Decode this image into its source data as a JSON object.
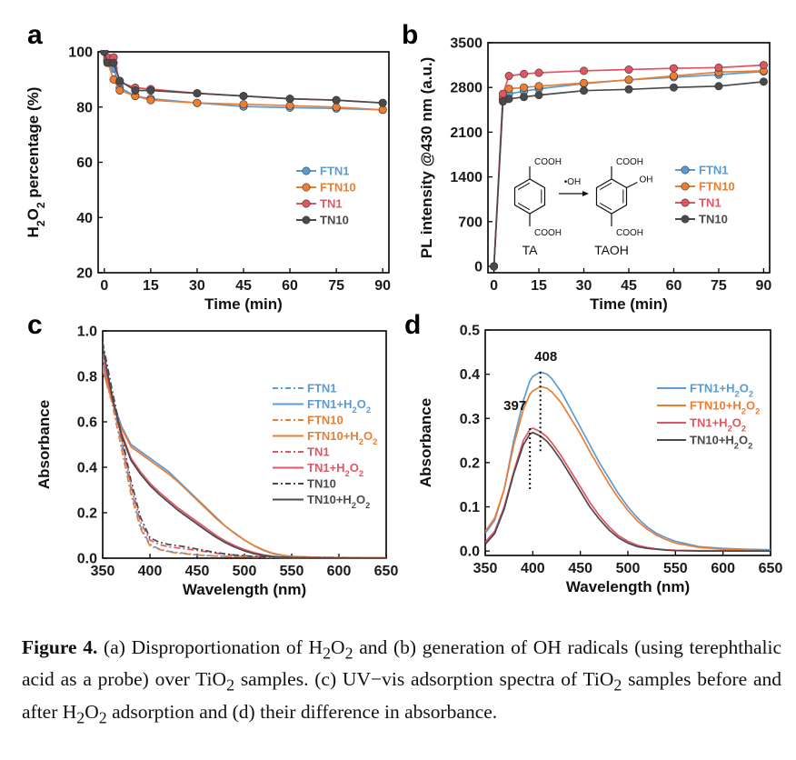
{
  "colors": {
    "FTN1": "#5b9bd5",
    "FTN10": "#ed7d31",
    "TN1": "#e05563",
    "TN10": "#4a4a4a",
    "axis": "#000000"
  },
  "caption": {
    "label": "Figure 4.",
    "html": "(a) Disproportionation of H<sub>2</sub>O<sub>2</sub> and (b) generation of OH radicals (using terephthalic acid as a probe) over TiO<sub>2</sub> samples. (c) UV&minus;vis adsorption spectra of TiO<sub>2</sub> samples before and after H<sub>2</sub>O<sub>2</sub> adsorption and (d) their difference in absorbance."
  },
  "chart_data": [
    {
      "panel": "a",
      "type": "line",
      "title": "",
      "xlabel": "Time (min)",
      "ylabel": "H2O2 percentage (%)",
      "xlim": [
        -2,
        92
      ],
      "ylim": [
        20,
        100
      ],
      "xticks": [
        0,
        15,
        30,
        45,
        60,
        75,
        90
      ],
      "yticks": [
        20,
        40,
        60,
        80,
        100
      ],
      "legend_position": "center-right",
      "x": [
        0,
        1,
        3,
        5,
        10,
        15,
        30,
        45,
        60,
        75,
        90
      ],
      "series": [
        {
          "name": "FTN1",
          "color_key": "FTN1",
          "values": [
            100,
            97,
            94,
            87,
            84,
            83,
            81.5,
            80.2,
            79.8,
            79.5,
            79
          ]
        },
        {
          "name": "FTN10",
          "color_key": "FTN10",
          "values": [
            100,
            96.5,
            90,
            86,
            84,
            82.5,
            81.5,
            81,
            80.5,
            80,
            79
          ]
        },
        {
          "name": "TN1",
          "color_key": "TN1",
          "values": [
            100,
            98,
            98,
            89,
            87,
            86.5,
            85,
            84,
            83,
            82.5,
            81.5
          ]
        },
        {
          "name": "TN10",
          "color_key": "TN10",
          "values": [
            100,
            96,
            96,
            89.5,
            86,
            86,
            85,
            84,
            83,
            82.5,
            81.5
          ]
        }
      ]
    },
    {
      "panel": "b",
      "type": "line",
      "title": "",
      "xlabel": "Time (min)",
      "ylabel": "PL intensity @430 nm (a.u.)",
      "xlim": [
        -2,
        92
      ],
      "ylim": [
        -100,
        3500
      ],
      "xticks": [
        0,
        15,
        30,
        45,
        60,
        75,
        90
      ],
      "yticks": [
        0,
        700,
        1400,
        2100,
        2800,
        3500
      ],
      "legend_position": "center-right",
      "x": [
        0,
        3,
        5,
        10,
        15,
        30,
        45,
        60,
        75,
        90
      ],
      "series": [
        {
          "name": "FTN1",
          "color_key": "FTN1",
          "values": [
            0,
            2620,
            2700,
            2740,
            2780,
            2860,
            2920,
            2960,
            3000,
            3050
          ]
        },
        {
          "name": "FTN10",
          "color_key": "FTN10",
          "values": [
            0,
            2650,
            2780,
            2800,
            2820,
            2870,
            2920,
            2980,
            3040,
            3060
          ]
        },
        {
          "name": "TN1",
          "color_key": "TN1",
          "values": [
            0,
            2700,
            2980,
            3010,
            3030,
            3060,
            3080,
            3100,
            3110,
            3150
          ]
        },
        {
          "name": "TN10",
          "color_key": "TN10",
          "values": [
            0,
            2580,
            2620,
            2650,
            2680,
            2750,
            2770,
            2800,
            2820,
            2890
          ]
        }
      ],
      "inset": {
        "reactant_group_top": "COOH",
        "reactant_group_bottom": "COOH",
        "reactant_label": "TA",
        "reagent": "•OH",
        "product_group_top": "COOH",
        "product_group_side": "OH",
        "product_group_bottom": "COOH",
        "product_label": "TAOH"
      }
    },
    {
      "panel": "c",
      "type": "line",
      "title": "",
      "xlabel": "Wavelength (nm)",
      "ylabel": "Absorbance",
      "xlim": [
        350,
        650
      ],
      "ylim": [
        0,
        1.0
      ],
      "xticks": [
        350,
        400,
        450,
        500,
        550,
        600,
        650
      ],
      "yticks": [
        0.0,
        0.2,
        0.4,
        0.6,
        0.8,
        1.0
      ],
      "legend_position": "right",
      "x": [
        350,
        360,
        370,
        380,
        390,
        400,
        410,
        420,
        430,
        440,
        450,
        460,
        470,
        480,
        490,
        500,
        510,
        520,
        530,
        540,
        550,
        575,
        600,
        625,
        650
      ],
      "series": [
        {
          "name": "FTN1",
          "color_key": "FTN1",
          "dash": "dashdot",
          "values": [
            0.85,
            0.7,
            0.5,
            0.3,
            0.14,
            0.06,
            0.04,
            0.03,
            0.025,
            0.02,
            0.015,
            0.012,
            0.01,
            0.009,
            0.008,
            0.007,
            0.006,
            0.005,
            0.004,
            0.003,
            0.002,
            0.002,
            0.001,
            0.001,
            0.001
          ]
        },
        {
          "name": "FTN1+H2O2",
          "color_key": "FTN1",
          "dash": "solid",
          "values": [
            0.84,
            0.7,
            0.58,
            0.5,
            0.47,
            0.44,
            0.41,
            0.38,
            0.34,
            0.3,
            0.26,
            0.22,
            0.18,
            0.14,
            0.11,
            0.08,
            0.055,
            0.035,
            0.02,
            0.012,
            0.007,
            0.004,
            0.003,
            0.002,
            0.002
          ]
        },
        {
          "name": "FTN10",
          "color_key": "FTN10",
          "dash": "dashdot",
          "values": [
            0.83,
            0.68,
            0.48,
            0.28,
            0.13,
            0.055,
            0.038,
            0.028,
            0.022,
            0.018,
            0.014,
            0.011,
            0.009,
            0.008,
            0.007,
            0.006,
            0.005,
            0.004,
            0.003,
            0.003,
            0.002,
            0.002,
            0.001,
            0.001,
            0.001
          ]
        },
        {
          "name": "FTN10+H2O2",
          "color_key": "FTN10",
          "dash": "solid",
          "values": [
            0.83,
            0.69,
            0.57,
            0.49,
            0.46,
            0.43,
            0.4,
            0.37,
            0.335,
            0.295,
            0.255,
            0.215,
            0.175,
            0.14,
            0.108,
            0.08,
            0.056,
            0.037,
            0.022,
            0.013,
            0.008,
            0.004,
            0.003,
            0.002,
            0.002
          ]
        },
        {
          "name": "TN1",
          "color_key": "TN1",
          "dash": "dashdot",
          "values": [
            0.9,
            0.72,
            0.52,
            0.32,
            0.16,
            0.08,
            0.06,
            0.05,
            0.045,
            0.04,
            0.034,
            0.028,
            0.022,
            0.017,
            0.013,
            0.01,
            0.008,
            0.006,
            0.005,
            0.004,
            0.003,
            0.002,
            0.002,
            0.001,
            0.001
          ]
        },
        {
          "name": "TN1+H2O2",
          "color_key": "TN1",
          "dash": "solid",
          "values": [
            0.88,
            0.7,
            0.55,
            0.44,
            0.38,
            0.33,
            0.29,
            0.255,
            0.22,
            0.19,
            0.16,
            0.13,
            0.1,
            0.075,
            0.055,
            0.038,
            0.025,
            0.015,
            0.009,
            0.005,
            0.003,
            0.002,
            0.001,
            0.001,
            0.001
          ]
        },
        {
          "name": "TN10",
          "color_key": "TN10",
          "dash": "dashdot",
          "values": [
            0.95,
            0.74,
            0.54,
            0.34,
            0.18,
            0.09,
            0.07,
            0.06,
            0.055,
            0.048,
            0.04,
            0.032,
            0.025,
            0.019,
            0.014,
            0.011,
            0.008,
            0.006,
            0.005,
            0.004,
            0.003,
            0.002,
            0.002,
            0.001,
            0.001
          ]
        },
        {
          "name": "TN10+H2O2",
          "color_key": "TN10",
          "dash": "solid",
          "values": [
            0.93,
            0.71,
            0.54,
            0.43,
            0.37,
            0.32,
            0.28,
            0.245,
            0.21,
            0.18,
            0.15,
            0.12,
            0.092,
            0.068,
            0.048,
            0.032,
            0.02,
            0.012,
            0.007,
            0.004,
            0.002,
            0.001,
            0.001,
            0.001,
            0.001
          ]
        }
      ]
    },
    {
      "panel": "d",
      "type": "line",
      "title": "",
      "xlabel": "Wavelength (nm)",
      "ylabel": "Absorbance",
      "xlim": [
        350,
        650
      ],
      "ylim": [
        -0.01,
        0.5
      ],
      "xticks": [
        350,
        400,
        450,
        500,
        550,
        600,
        650
      ],
      "yticks": [
        0.0,
        0.1,
        0.2,
        0.3,
        0.4,
        0.5
      ],
      "legend_position": "right",
      "annotations": [
        {
          "text": "408",
          "x": 408,
          "y": 0.405
        },
        {
          "text": "397",
          "x": 397,
          "y": 0.278
        }
      ],
      "x": [
        350,
        360,
        370,
        380,
        390,
        397,
        400,
        408,
        415,
        420,
        430,
        440,
        450,
        460,
        470,
        480,
        490,
        500,
        510,
        520,
        530,
        540,
        550,
        575,
        600,
        625,
        650
      ],
      "series": [
        {
          "name": "FTN1+H2O2",
          "color_key": "FTN1",
          "values": [
            0.04,
            0.07,
            0.14,
            0.25,
            0.34,
            0.385,
            0.395,
            0.405,
            0.4,
            0.39,
            0.36,
            0.32,
            0.28,
            0.24,
            0.2,
            0.165,
            0.13,
            0.1,
            0.075,
            0.055,
            0.04,
            0.03,
            0.022,
            0.01,
            0.006,
            0.004,
            0.003
          ]
        },
        {
          "name": "FTN10+H2O2",
          "color_key": "FTN10",
          "values": [
            0.045,
            0.075,
            0.14,
            0.24,
            0.32,
            0.355,
            0.362,
            0.372,
            0.368,
            0.36,
            0.335,
            0.3,
            0.265,
            0.225,
            0.188,
            0.152,
            0.12,
            0.092,
            0.068,
            0.05,
            0.036,
            0.026,
            0.018,
            0.008,
            0.004,
            0.002,
            0.001
          ]
        },
        {
          "name": "TN1+H2O2",
          "color_key": "TN1",
          "values": [
            0.02,
            0.045,
            0.1,
            0.18,
            0.25,
            0.275,
            0.278,
            0.27,
            0.258,
            0.245,
            0.215,
            0.18,
            0.145,
            0.11,
            0.08,
            0.055,
            0.035,
            0.022,
            0.013,
            0.008,
            0.005,
            0.003,
            0.002,
            0.001,
            0.001,
            0.0,
            0.0
          ]
        },
        {
          "name": "TN10+H2O2",
          "color_key": "TN10",
          "values": [
            0.015,
            0.04,
            0.095,
            0.175,
            0.24,
            0.265,
            0.268,
            0.26,
            0.248,
            0.235,
            0.205,
            0.17,
            0.135,
            0.1,
            0.072,
            0.048,
            0.03,
            0.018,
            0.01,
            0.006,
            0.004,
            0.002,
            0.001,
            0.0,
            0.0,
            0.0,
            0.0
          ]
        }
      ]
    }
  ]
}
